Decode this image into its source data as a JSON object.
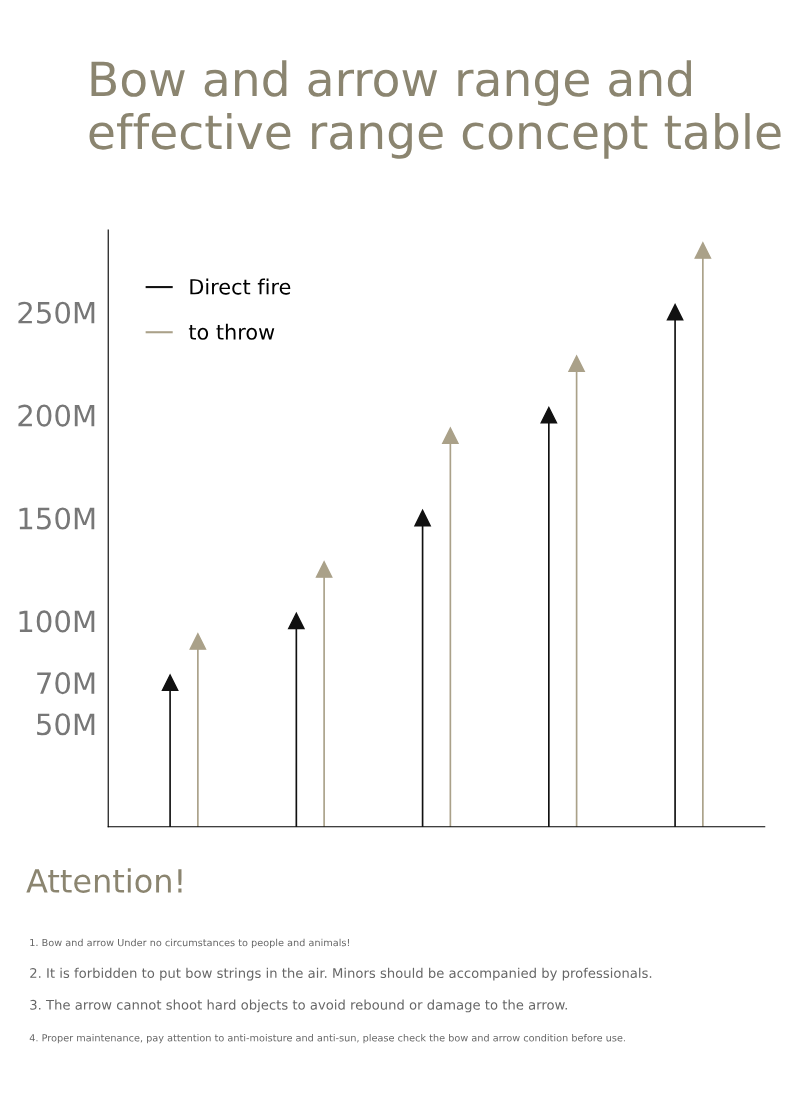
{
  "chart_data": {
    "type": "lollipop",
    "title": "Bow and arrow range and effective range concept table",
    "categories": [
      null,
      null,
      null,
      null,
      null
    ],
    "series": [
      {
        "name": "Direct fire",
        "color": "#111111",
        "values": [
          70,
          100,
          150,
          200,
          250
        ]
      },
      {
        "name": "to throw",
        "color": "#aaa189",
        "values": [
          90,
          125,
          190,
          225,
          280
        ]
      }
    ],
    "ylim": [
      0,
      290
    ],
    "yticks": [
      {
        "value": 50,
        "label": "50M"
      },
      {
        "value": 70,
        "label": "70M"
      },
      {
        "value": 100,
        "label": "100M"
      },
      {
        "value": 150,
        "label": "150M"
      },
      {
        "value": 200,
        "label": "200M"
      },
      {
        "value": 250,
        "label": "250M"
      }
    ],
    "marker": "triangle",
    "grid": false,
    "legend": "top left",
    "annotations": [
      "Attention!",
      "1. Bow and arrow Under no circumstances to people and animals!",
      "2. It is forbidden to put bow strings in the air. Minors should be accompanied by professionals.",
      "3. The arrow cannot shoot hard objects to avoid rebound or damage to the arrow.",
      "4. Proper maintenance, pay attention to anti-moisture and anti-sun, please check the bow and arrow condition before use."
    ]
  }
}
